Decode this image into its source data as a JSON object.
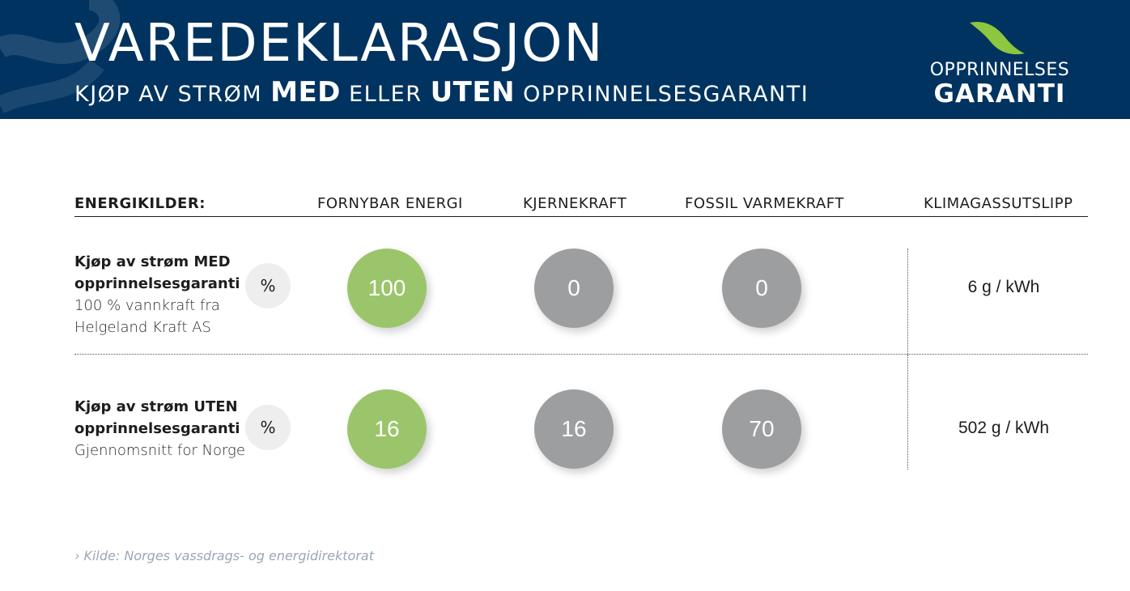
{
  "header": {
    "title": "VAREDEKLARASJON",
    "subtitle_part1": "KJØP AV STRØM",
    "subtitle_med": "MED",
    "subtitle_part2": "ELLER",
    "subtitle_uten": "UTEN",
    "subtitle_part3": "OPPRINNELSESGARANTI",
    "logo_line1": "OPPRINNELSES",
    "logo_line2": "GARANTI",
    "logo_icon": "leaf-icon",
    "background_color": "#00335f",
    "logo_leaf_color": "#8dc63f"
  },
  "columns": {
    "label": "ENERGIKILDER:",
    "renewable": "FORNYBAR ENERGI",
    "nuclear": "KJERNEKRAFT",
    "fossil": "FOSSIL VARMEKRAFT",
    "emissions": "KLIMAGASSUTSLIPP"
  },
  "rows": [
    {
      "title_line1": "Kjøp av strøm MED",
      "title_line2": "opprinnelsesgaranti",
      "desc_line1": "100 % vannkraft fra",
      "desc_line2": "Helgeland Kraft AS",
      "unit": "%",
      "renewable": "100",
      "nuclear": "0",
      "fossil": "0",
      "emissions": "6 g / kWh"
    },
    {
      "title_line1": "Kjøp av strøm UTEN",
      "title_line2": "opprinnelsesgaranti",
      "desc_line1": "Gjennomsnitt for Norge",
      "unit": "%",
      "renewable": "16",
      "nuclear": "16",
      "fossil": "70",
      "emissions": "502 g / kWh"
    }
  ],
  "colors": {
    "renewable": "#9bc56a",
    "other": "#9d9ea0"
  },
  "source": "›  Kilde: Norges vassdrags- og energidirektorat"
}
